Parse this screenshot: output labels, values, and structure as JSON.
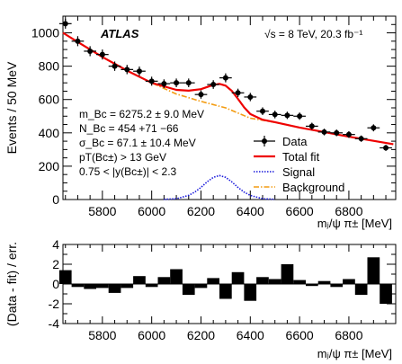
{
  "chart_data": [
    {
      "type": "scatter",
      "experiment": "ATLAS",
      "energy_label": "√s = 8 TeV, 20.3 fb⁻¹",
      "ylabel": "Events / 50 MeV",
      "xlabel": "mⱼ/ψ π± [MeV]",
      "xlim": [
        5640,
        6990
      ],
      "ylim": [
        0,
        1100
      ],
      "xticks": [
        5800,
        6000,
        6200,
        6400,
        6600,
        6800
      ],
      "yticks": [
        0,
        200,
        400,
        600,
        800,
        1000
      ],
      "fit_params": [
        "m_Bc = 6275.2 ± 9.0 MeV",
        "N_Bc = 454 +71 −66",
        "σ_Bc = 67.1 ± 10.4 MeV",
        "pT(Bc±) > 13 GeV",
        "0.75 < |y(Bc±)| < 2.3"
      ],
      "legend": [
        "Data",
        "Total fit",
        "Signal",
        "Background"
      ],
      "legend_position": "center-right",
      "series": [
        {
          "name": "Data",
          "x": [
            5650,
            5700,
            5750,
            5800,
            5850,
            5900,
            5950,
            6000,
            6050,
            6100,
            6150,
            6200,
            6250,
            6300,
            6350,
            6400,
            6450,
            6500,
            6550,
            6600,
            6650,
            6700,
            6750,
            6800,
            6850,
            6900,
            6950
          ],
          "y": [
            1055,
            950,
            890,
            870,
            800,
            780,
            770,
            710,
            695,
            700,
            700,
            630,
            690,
            730,
            640,
            615,
            530,
            510,
            505,
            500,
            440,
            405,
            400,
            390,
            365,
            430,
            310
          ],
          "yerr": [
            30,
            30,
            30,
            30,
            28,
            28,
            28,
            27,
            26,
            26,
            26,
            25,
            26,
            27,
            25,
            25,
            23,
            23,
            22,
            22,
            21,
            20,
            20,
            20,
            19,
            21,
            18
          ]
        },
        {
          "name": "Total fit",
          "x": [
            5640,
            5700,
            5800,
            5900,
            6000,
            6100,
            6150,
            6200,
            6225,
            6250,
            6275,
            6300,
            6325,
            6350,
            6375,
            6400,
            6450,
            6500,
            6600,
            6700,
            6800,
            6900,
            6980
          ],
          "y": [
            1000,
            945,
            855,
            773,
            700,
            658,
            653,
            662,
            675,
            688,
            694,
            683,
            652,
            604,
            553,
            513,
            479,
            464,
            432,
            405,
            377,
            352,
            332
          ]
        },
        {
          "name": "Signal",
          "x": [
            6050,
            6100,
            6150,
            6175,
            6200,
            6225,
            6250,
            6275,
            6300,
            6325,
            6350,
            6375,
            6400,
            6450,
            6500
          ],
          "y": [
            1,
            5,
            25,
            45,
            73,
            106,
            133,
            144,
            133,
            106,
            73,
            45,
            25,
            5,
            1
          ]
        },
        {
          "name": "Background",
          "x": [
            5640,
            5700,
            5800,
            5900,
            6000,
            6100,
            6200,
            6300,
            6400,
            6500,
            6600,
            6700,
            6800,
            6900,
            6980
          ],
          "y": [
            1000,
            945,
            855,
            773,
            700,
            633,
            589,
            550,
            488,
            463,
            432,
            405,
            377,
            352,
            332
          ]
        }
      ]
    },
    {
      "type": "bar",
      "ylabel": "(Data - fit) / err.",
      "xlabel": "mⱼ/ψ π± [MeV]",
      "xlim": [
        5640,
        6990
      ],
      "ylim": [
        -4,
        4
      ],
      "xticks": [
        5800,
        6000,
        6200,
        6400,
        6600,
        6800
      ],
      "yticks": [
        -4,
        -2,
        0,
        2,
        4
      ],
      "x": [
        5650,
        5700,
        5750,
        5800,
        5850,
        5900,
        5950,
        6000,
        6050,
        6100,
        6150,
        6200,
        6250,
        6300,
        6350,
        6400,
        6450,
        6500,
        6550,
        6600,
        6650,
        6700,
        6750,
        6800,
        6850,
        6900,
        6950
      ],
      "values": [
        1.4,
        -0.3,
        -0.5,
        -0.4,
        -0.9,
        -0.4,
        0.8,
        -0.3,
        0.7,
        1.5,
        -1.1,
        -0.4,
        0.6,
        -1.5,
        1.2,
        -1.7,
        0.7,
        0.5,
        2.0,
        0.4,
        -0.2,
        0.3,
        -0.3,
        0.5,
        -1.1,
        2.7,
        -2.0
      ]
    }
  ]
}
